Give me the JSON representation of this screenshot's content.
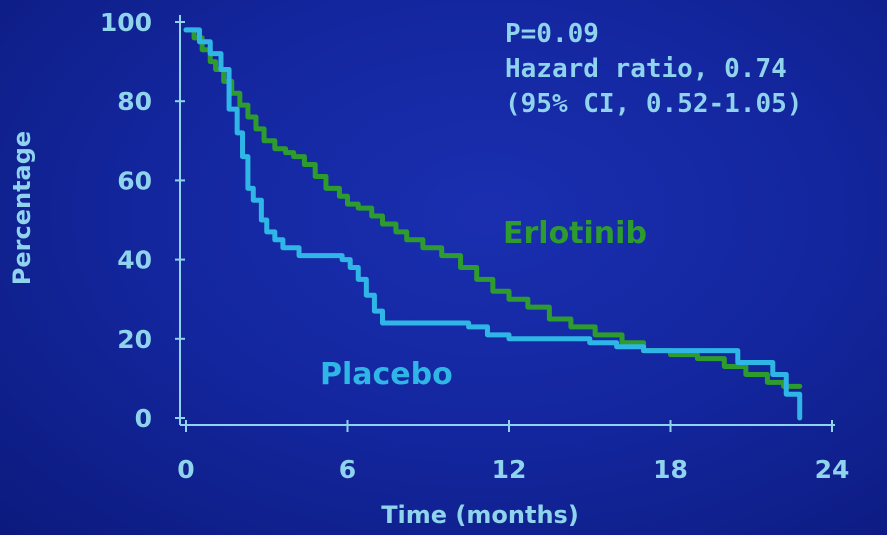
{
  "chart_data": {
    "type": "line",
    "xlabel": "Time (months)",
    "ylabel": "Percentage",
    "xlim": [
      0,
      24
    ],
    "ylim": [
      0,
      100
    ],
    "x_ticks": [
      "0",
      "6",
      "12",
      "18",
      "24"
    ],
    "y_ticks": [
      "100",
      "80",
      "60",
      "40",
      "20",
      "0"
    ],
    "annotations": [
      "P=0.09",
      "Hazard ratio, 0.74",
      "(95% CI, 0.52-1.05)"
    ],
    "series": [
      {
        "name": "Erlotinib",
        "color": "#2e9b2e",
        "step": true,
        "x": [
          0,
          0.3,
          0.6,
          0.9,
          1.1,
          1.4,
          1.7,
          2.0,
          2.3,
          2.6,
          2.9,
          3.3,
          3.7,
          4.0,
          4.4,
          4.8,
          5.2,
          5.7,
          6.0,
          6.4,
          6.9,
          7.3,
          7.8,
          8.2,
          8.8,
          9.5,
          10.2,
          10.8,
          11.4,
          12.0,
          12.7,
          13.5,
          14.3,
          15.2,
          16.2,
          17.0,
          18.0,
          19.0,
          20.0,
          20.8,
          21.6,
          22.2,
          22.8
        ],
        "y": [
          98,
          96,
          93,
          90,
          88,
          85,
          82,
          79,
          76,
          73,
          70,
          68,
          67,
          66,
          64,
          61,
          58,
          56,
          54,
          53,
          51,
          49,
          47,
          45,
          43,
          41,
          38,
          35,
          32,
          30,
          28,
          25,
          23,
          21,
          19,
          17,
          16,
          15,
          13,
          11,
          9,
          8,
          8
        ]
      },
      {
        "name": "Placebo",
        "color": "#2fb6e6",
        "step": true,
        "x": [
          0,
          0.5,
          0.9,
          1.3,
          1.6,
          1.9,
          2.1,
          2.3,
          2.5,
          2.8,
          3.0,
          3.3,
          3.6,
          4.2,
          5.0,
          5.8,
          6.1,
          6.4,
          6.7,
          7.0,
          7.3,
          8.0,
          9.0,
          10.5,
          11.2,
          12.0,
          13.0,
          15.0,
          16.0,
          17.0,
          19.5,
          20.5,
          21.8,
          22.3,
          22.8
        ],
        "y": [
          98,
          95,
          92,
          88,
          78,
          72,
          66,
          58,
          55,
          50,
          47,
          45,
          43,
          41,
          41,
          40,
          38,
          35,
          31,
          27,
          24,
          24,
          24,
          23,
          21,
          20,
          20,
          19,
          18,
          17,
          17,
          14,
          11,
          6,
          0
        ]
      }
    ]
  }
}
